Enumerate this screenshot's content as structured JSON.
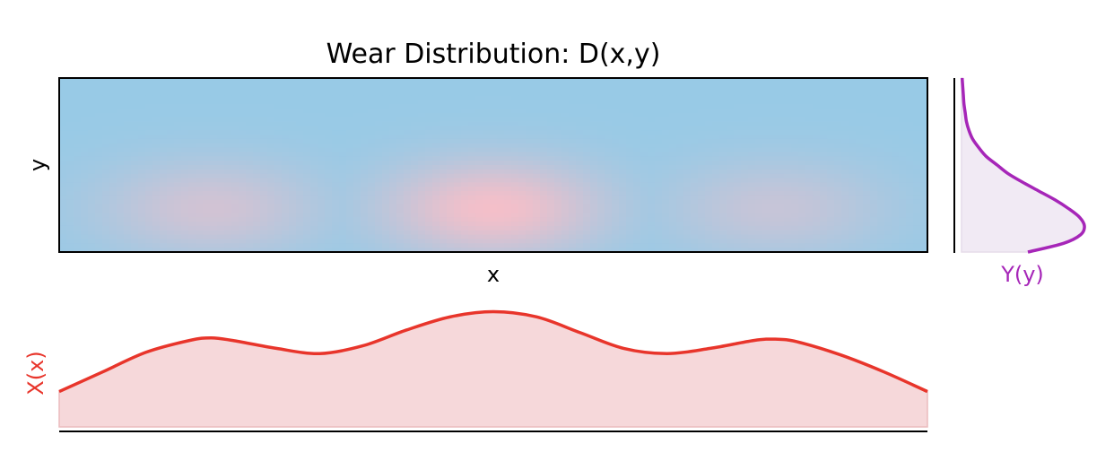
{
  "chart_data": [
    {
      "type": "heatmap",
      "title": "Wear Distribution: D(x,y)",
      "xlabel": "x",
      "ylabel": "y",
      "xlim": [
        0,
        1
      ],
      "ylim": [
        0,
        1
      ],
      "grid": false,
      "colors": {
        "low": "#98cae6",
        "high": "#f4bfc9"
      },
      "x_peaks": [
        {
          "x": 0.175,
          "amplitude": 0.62
        },
        {
          "x": 0.5,
          "amplitude": 1.0
        },
        {
          "x": 0.825,
          "amplitude": 0.5
        }
      ],
      "y_peak": 0.25
    },
    {
      "type": "area",
      "ylabel": "X(x)",
      "color": "#e8352b",
      "fill": "#f6d8da",
      "x": [
        0.0,
        0.05,
        0.1,
        0.15,
        0.175,
        0.2,
        0.25,
        0.3,
        0.35,
        0.4,
        0.45,
        0.5,
        0.55,
        0.6,
        0.65,
        0.7,
        0.75,
        0.8,
        0.825,
        0.85,
        0.9,
        0.95,
        1.0
      ],
      "values": [
        0.27,
        0.42,
        0.57,
        0.66,
        0.68,
        0.66,
        0.6,
        0.56,
        0.62,
        0.74,
        0.84,
        0.88,
        0.84,
        0.72,
        0.6,
        0.56,
        0.6,
        0.66,
        0.67,
        0.65,
        0.55,
        0.42,
        0.27
      ],
      "ylim": [
        0,
        1.0
      ]
    },
    {
      "type": "area",
      "xlabel": "Y(y)",
      "color": "#a626b8",
      "fill": "#f1eaf4",
      "y": [
        0.0,
        0.05,
        0.1,
        0.15,
        0.2,
        0.25,
        0.3,
        0.35,
        0.4,
        0.45,
        0.5,
        0.55,
        0.6,
        0.65,
        0.7,
        0.75,
        0.8,
        0.85,
        0.9,
        0.95,
        1.0
      ],
      "values": [
        0.54,
        0.83,
        0.97,
        1.0,
        0.96,
        0.87,
        0.76,
        0.63,
        0.5,
        0.38,
        0.29,
        0.2,
        0.14,
        0.09,
        0.06,
        0.04,
        0.03,
        0.02,
        0.015,
        0.01,
        0.005
      ],
      "xlim": [
        0,
        1.0
      ]
    }
  ]
}
